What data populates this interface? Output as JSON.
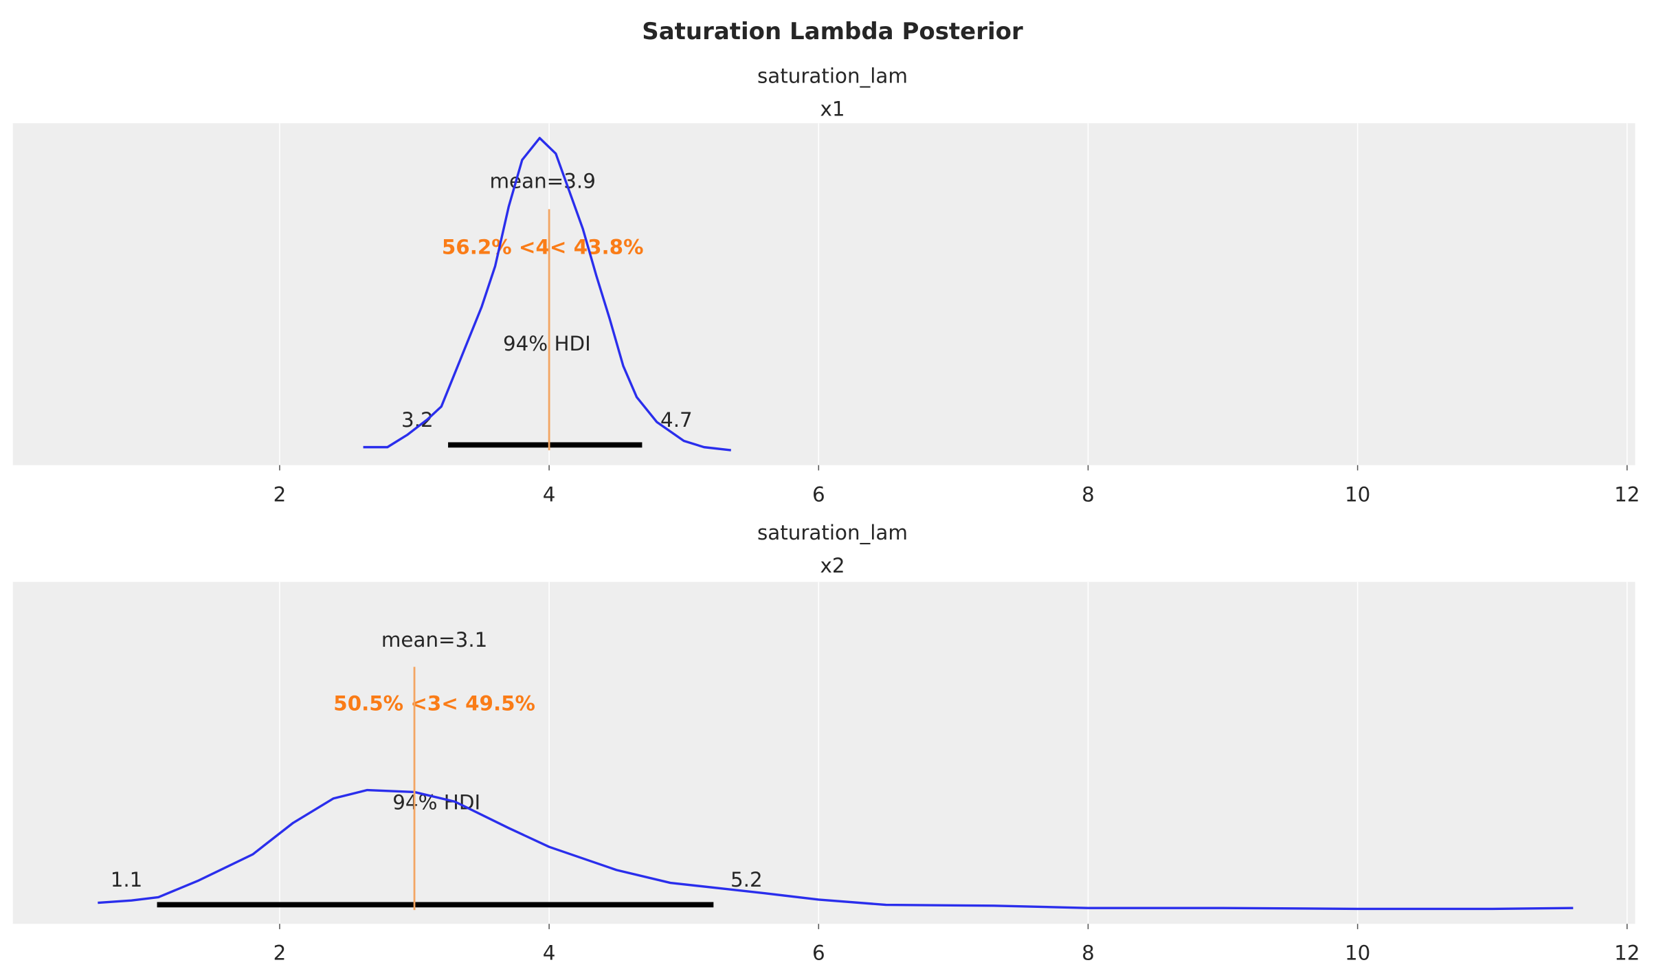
{
  "chart_data": {
    "title": "Saturation Lambda Posterior",
    "type": "line",
    "colors": {
      "kde": "#2a2eec",
      "hdi": "#000000",
      "ref_line": "#f3a562",
      "ref_text": "#fa7c17",
      "panel_bg": "#eeeeee",
      "grid": "#ffffff"
    },
    "grid": true,
    "panels": [
      {
        "var_name": "saturation_lam",
        "coord": "x1",
        "xlim": [
          0.02,
          12.06
        ],
        "xticks": [
          2,
          4,
          6,
          8,
          10,
          12
        ],
        "mean_label": "mean=3.9",
        "ref_value": 4,
        "ref_label": "56.2% <4< 43.8%",
        "hdi_label": "94% HDI",
        "hdi": [
          3.25,
          4.69
        ],
        "hdi_low_label": "3.2",
        "hdi_high_label": "4.7",
        "kde": {
          "x": [
            2.62,
            2.8,
            2.95,
            3.1,
            3.2,
            3.35,
            3.5,
            3.6,
            3.7,
            3.8,
            3.93,
            4.05,
            4.15,
            4.25,
            4.35,
            4.45,
            4.55,
            4.65,
            4.8,
            5.0,
            5.15,
            5.35
          ],
          "density": [
            0.01,
            0.01,
            0.05,
            0.1,
            0.14,
            0.3,
            0.46,
            0.59,
            0.78,
            0.93,
            1.0,
            0.95,
            0.83,
            0.71,
            0.56,
            0.42,
            0.27,
            0.17,
            0.09,
            0.03,
            0.01,
            0.0
          ]
        }
      },
      {
        "var_name": "saturation_lam",
        "coord": "x2",
        "xlim": [
          0.02,
          12.06
        ],
        "xticks": [
          2,
          4,
          6,
          8,
          10,
          12
        ],
        "mean_label": "mean=3.1",
        "ref_value": 3,
        "ref_label": "50.5% <3< 49.5%",
        "hdi_label": "94% HDI",
        "hdi": [
          1.09,
          5.22
        ],
        "hdi_low_label": "1.1",
        "hdi_high_label": "5.2",
        "kde": {
          "x": [
            0.65,
            0.9,
            1.1,
            1.4,
            1.8,
            2.1,
            2.4,
            2.65,
            3.0,
            3.3,
            3.7,
            4.0,
            4.5,
            4.9,
            5.3,
            5.6,
            6.0,
            6.5,
            7.3,
            8.0,
            9,
            10,
            11,
            11.6
          ],
          "density": [
            0.018,
            0.024,
            0.032,
            0.074,
            0.139,
            0.218,
            0.279,
            0.3,
            0.295,
            0.271,
            0.205,
            0.158,
            0.1,
            0.068,
            0.053,
            0.042,
            0.026,
            0.013,
            0.011,
            0.005,
            0.005,
            0.003,
            0.003,
            0.005
          ]
        }
      }
    ]
  }
}
